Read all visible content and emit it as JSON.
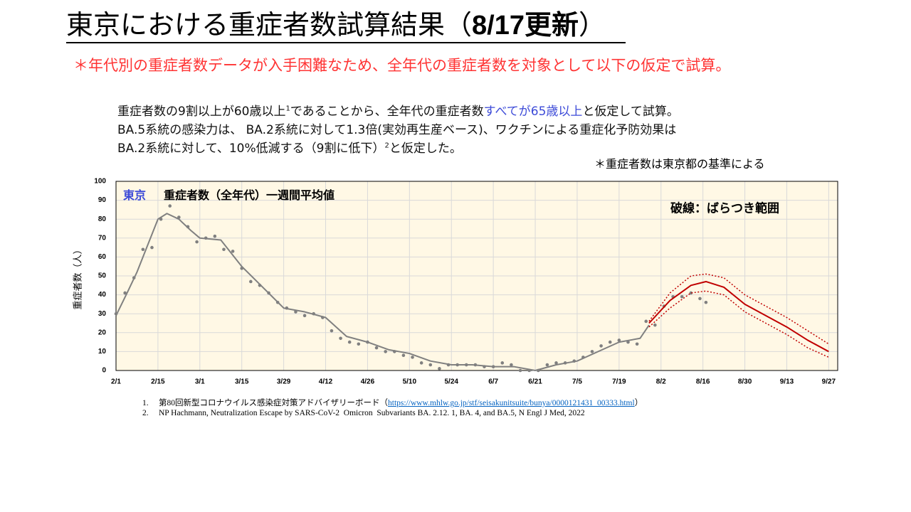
{
  "header": {
    "title": [
      "東京における重症者数試算結果（",
      "8/17更新",
      "）"
    ],
    "note": "＊年代別の重症者数データが入手困難なため、全年代の重症者数を対象として以下の仮定で試算。",
    "body": [
      [
        "重症者数の9割以上が60歳以上",
        "1",
        "であることから、全年代の重症者数",
        "すべてが65歳以上",
        "と仮定して試算。"
      ],
      [
        "BA.5系統の感染力は、 BA.2系統に対して1.3倍(実効再生産ベース)、ワクチンによる重症化予防効果は"
      ],
      [
        "BA.2系統に対して、10%低減する（9割に低下）",
        "2",
        "と仮定した。"
      ]
    ],
    "criteria": "＊重症者数は東京都の基準による"
  },
  "chart_data": {
    "type": "line",
    "y_label": "重症者数（人）",
    "annotations": [
      "東京",
      "重症者数（全年代）一週間平均値",
      "破線：ばらつき範囲"
    ],
    "xlim": [
      "2/1",
      "9/30"
    ],
    "xticks": [
      "2/1",
      "2/15",
      "3/1",
      "3/15",
      "3/29",
      "4/12",
      "4/26",
      "5/10",
      "5/24",
      "6/7",
      "6/21",
      "7/5",
      "7/19",
      "8/2",
      "8/16",
      "8/30",
      "9/13",
      "9/27"
    ],
    "ylim": [
      0,
      100
    ],
    "yticks": [
      0,
      10,
      20,
      30,
      40,
      50,
      60,
      70,
      80,
      90,
      100
    ],
    "grid": true,
    "background": "#fff8e5",
    "series": [
      {
        "mark": "point",
        "color": "#808080",
        "x": [
          "2/1",
          "2/4",
          "2/7",
          "2/10",
          "2/13",
          "2/16",
          "2/19",
          "2/22",
          "2/25",
          "2/28",
          "3/3",
          "3/6",
          "3/9",
          "3/12",
          "3/15",
          "3/18",
          "3/21",
          "3/24",
          "3/27",
          "3/30",
          "4/2",
          "4/5",
          "4/8",
          "4/11",
          "4/14",
          "4/17",
          "4/20",
          "4/23",
          "4/26",
          "4/29",
          "5/2",
          "5/5",
          "5/8",
          "5/11",
          "5/14",
          "5/17",
          "5/20",
          "5/23",
          "5/26",
          "5/29",
          "6/1",
          "6/4",
          "6/7",
          "6/10",
          "6/13",
          "6/16",
          "6/19",
          "6/22",
          "6/25",
          "6/28",
          "7/1",
          "7/4",
          "7/7",
          "7/10",
          "7/13",
          "7/16",
          "7/19",
          "7/22",
          "7/25",
          "7/28",
          "7/31",
          "8/3",
          "8/6",
          "8/9",
          "8/12",
          "8/15",
          "8/17"
        ],
        "values": [
          30,
          41,
          49,
          64,
          65,
          80,
          87,
          81,
          76,
          68,
          70,
          71,
          64,
          63,
          54,
          47,
          45,
          41,
          36,
          33,
          31,
          29,
          30,
          28,
          21,
          17,
          15,
          14,
          15,
          12,
          10,
          10,
          8,
          7,
          4,
          3,
          1,
          3,
          3,
          3,
          3,
          2,
          2,
          4,
          3,
          0,
          0,
          0,
          3,
          4,
          4,
          5,
          7,
          10,
          13,
          15,
          16,
          15,
          14,
          26,
          24,
          34,
          39,
          39,
          41,
          38,
          36
        ]
      },
      {
        "mark": "line",
        "color": "#808080",
        "width": 2,
        "x": [
          "2/1",
          "2/5",
          "2/8",
          "2/12",
          "2/15",
          "2/18",
          "2/22",
          "2/26",
          "3/1",
          "3/8",
          "3/15",
          "3/22",
          "3/29",
          "4/5",
          "4/12",
          "4/19",
          "4/26",
          "5/3",
          "5/10",
          "5/17",
          "5/24",
          "5/31",
          "6/7",
          "6/14",
          "6/21",
          "6/28",
          "7/5",
          "7/12",
          "7/19",
          "7/26",
          "7/29"
        ],
        "values": [
          29,
          42,
          52,
          68,
          80,
          83,
          80,
          74,
          70,
          69,
          55,
          44,
          33,
          31,
          28,
          18,
          15,
          11,
          9,
          5,
          3,
          3,
          2,
          2,
          0,
          3,
          5,
          10,
          15,
          17,
          24
        ]
      },
      {
        "mark": "line",
        "color": "#c00000",
        "width": 2,
        "x": [
          "7/29",
          "8/5",
          "8/12",
          "8/17",
          "8/23",
          "8/30",
          "9/6",
          "9/13",
          "9/20",
          "9/27"
        ],
        "values": [
          25,
          37,
          45,
          47,
          44,
          35,
          29,
          23,
          16,
          10
        ]
      },
      {
        "mark": "line",
        "color": "#c00000",
        "width": 1.5,
        "dash": true,
        "x": [
          "7/29",
          "8/5",
          "8/12",
          "8/17",
          "8/23",
          "8/30",
          "9/6",
          "9/13",
          "9/20",
          "9/27"
        ],
        "values": [
          26,
          41,
          50,
          51,
          49,
          40,
          34,
          28,
          21,
          14
        ]
      },
      {
        "mark": "line",
        "color": "#c00000",
        "width": 1.5,
        "dash": true,
        "x": [
          "7/29",
          "8/5",
          "8/12",
          "8/17",
          "8/23",
          "8/30",
          "9/6",
          "9/13",
          "9/20",
          "9/27"
        ],
        "values": [
          23,
          33,
          41,
          42,
          40,
          31,
          25,
          19,
          12,
          7
        ]
      }
    ]
  },
  "references": [
    [
      "1.",
      "第80回新型コロナウイルス感染症対策アドバイザリーボード（",
      "https://www.mhlw.go.jp/stf/seisakunitsuite/bunya/0000121431_00333.html",
      "）"
    ],
    [
      "2.",
      "NP Hachmann, Neutralization Escape by SARS-CoV-2  Omicron  Subvariants BA. 2.12. 1, BA. 4, and BA.5, N Engl J Med, 2022"
    ]
  ]
}
